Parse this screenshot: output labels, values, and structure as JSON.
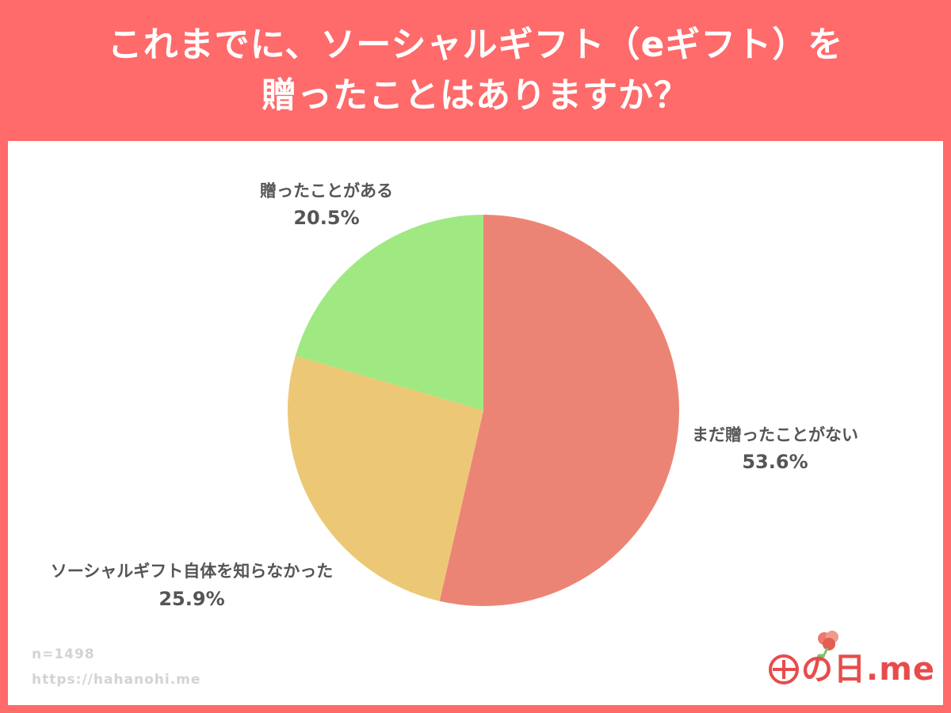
{
  "title": {
    "line1": "これまでに、ソーシャルギフト（eギフト）を",
    "line2": "贈ったことはありますか？"
  },
  "colors": {
    "header_bg": "#ff6a6a",
    "panel_bg": "#ffffff",
    "label_text": "#555555",
    "footer_text": "#d3d3d3",
    "logo_red": "#e74c4c"
  },
  "chart_data": {
    "type": "pie",
    "start_angle_deg": 0,
    "direction": "clockwise",
    "slices": [
      {
        "label": "まだ贈ったことがない",
        "value": 53.6,
        "pct_text": "53.6%",
        "color": "#ec8476"
      },
      {
        "label": "ソーシャルギフト自体を知らなかった",
        "value": 25.9,
        "pct_text": "25.9%",
        "color": "#ecc876"
      },
      {
        "label": "贈ったことがある",
        "value": 20.5,
        "pct_text": "20.5%",
        "color": "#9fe882"
      }
    ]
  },
  "footer": {
    "sample": "n=1498",
    "url": "https://hahanohi.me"
  },
  "logo": {
    "text": "の日.me",
    "icon": "flower-icon"
  }
}
